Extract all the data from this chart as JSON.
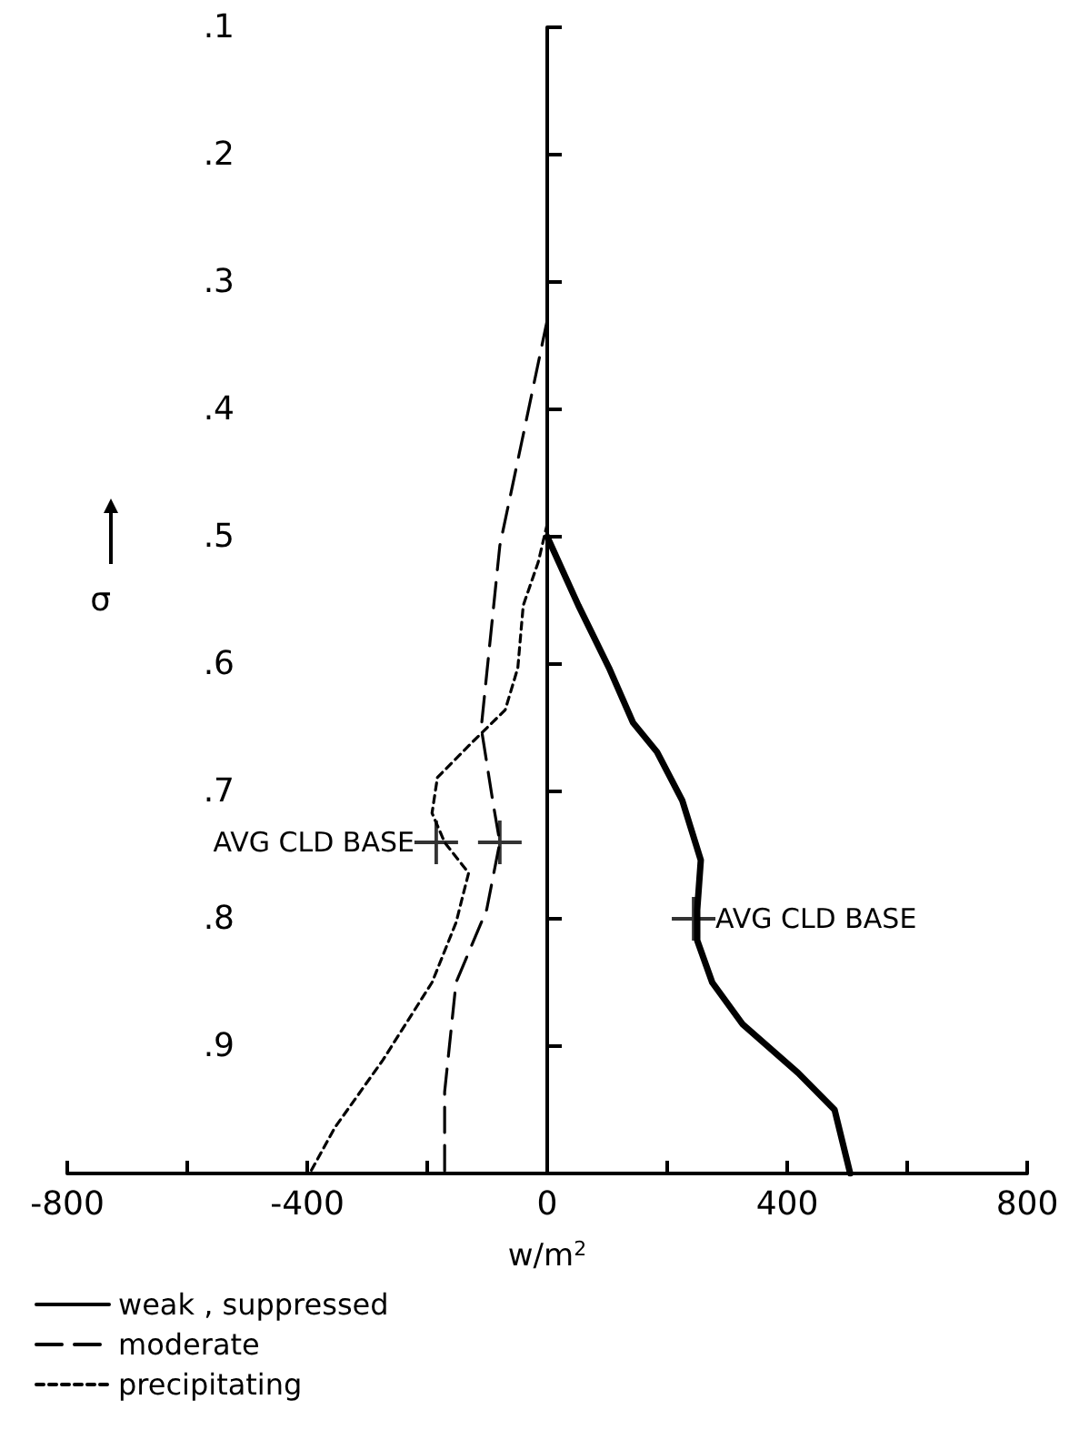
{
  "chart_data": {
    "type": "line",
    "xlabel": "w/m$^{2}$",
    "ylabel": "σ",
    "xlim": [
      -800,
      800
    ],
    "ylim": [
      1.0,
      0.1
    ],
    "xticks": [
      -800,
      {
        "value": -600,
        "label": null
      },
      -400,
      {
        "value": -200,
        "label": null
      },
      0,
      {
        "value": 200,
        "label": null
      },
      400,
      {
        "value": 600,
        "label": null
      },
      800
    ],
    "yticks": [
      {
        "value": 0.1,
        "label": ".1"
      },
      {
        "value": 0.2,
        "label": ".2"
      },
      {
        "value": 0.3,
        "label": ".3"
      },
      {
        "value": 0.4,
        "label": ".4"
      },
      {
        "value": 0.5,
        "label": ".5"
      },
      {
        "value": 0.6,
        "label": ".6"
      },
      {
        "value": 0.7,
        "label": ".7"
      },
      {
        "value": 0.8,
        "label": ".8"
      },
      {
        "value": 0.9,
        "label": ".9"
      }
    ],
    "legend": "bottom left",
    "marker": "none",
    "series": [
      {
        "name": "weak , suppressed",
        "color": "#000000",
        "line_style": "solid",
        "x": [
          0,
          52,
          103,
          143,
          183,
          225,
          256,
          250,
          250,
          275,
          326,
          418,
          479,
          505
        ],
        "values": [
          0.5,
          0.554,
          0.603,
          0.646,
          0.669,
          0.707,
          0.754,
          0.793,
          0.817,
          0.85,
          0.883,
          0.921,
          0.95,
          1.0
        ]
      },
      {
        "name": "moderate",
        "color": "#000000",
        "line_style": "dashed",
        "x": [
          0,
          -40,
          -79,
          -110,
          -91,
          -79,
          -101,
          -152,
          -171,
          -171
        ],
        "values": [
          0.33,
          0.42,
          0.507,
          0.65,
          0.707,
          0.74,
          0.793,
          0.85,
          0.936,
          1.0
        ]
      },
      {
        "name": "precipitating",
        "color": "#000000",
        "line_style": "dotted",
        "x": [
          0,
          -15,
          -40,
          -49,
          -70,
          -122,
          -183,
          -192,
          -171,
          -131,
          -152,
          -192,
          -274,
          -354,
          -396
        ],
        "values": [
          0.49,
          0.52,
          0.554,
          0.603,
          0.636,
          0.66,
          0.689,
          0.717,
          0.74,
          0.764,
          0.803,
          0.85,
          0.911,
          0.964,
          1.0
        ]
      },
      {
        "type": "scatter",
        "marker": "cross",
        "color": "#000000",
        "x": [
          -185,
          -79,
          244
        ],
        "values": [
          0.74,
          0.74,
          0.8
        ]
      }
    ],
    "annotations": [
      {
        "text": "AVG CLD BASE",
        "x": -185,
        "y": 0.74
      },
      {
        "text": "AVG CLD BASE",
        "x": 244,
        "y": 0.8
      }
    ]
  }
}
